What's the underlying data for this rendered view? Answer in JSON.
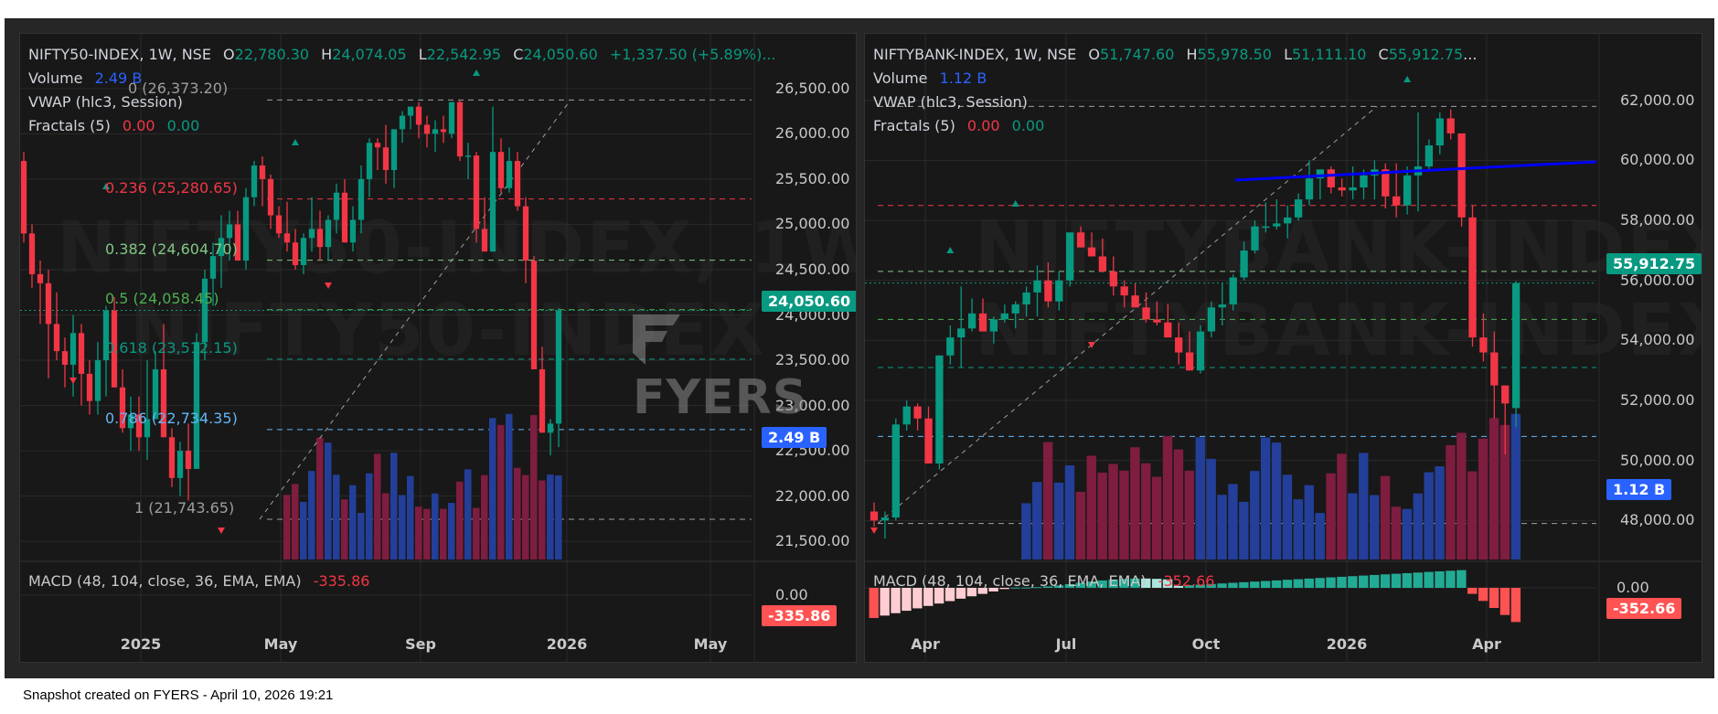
{
  "footer": {
    "text": "Snapshot created on FYERS - April 10, 2026 19:21"
  },
  "watermark_logo": "FYERS",
  "colors": {
    "up": "#089981",
    "down": "#f23645",
    "vol_up": "#233f99",
    "vol_down": "#7e1d3f",
    "macd_pos_strong": "#22ab94",
    "macd_pos_weak": "#ace5dc",
    "macd_neg_strong": "#ff5252",
    "macd_neg_weak": "#ffcdd2",
    "fib_0": "#9e9e9e",
    "fib_0236": "#f23645",
    "fib_0382": "#81c784",
    "fib_05": "#4caf50",
    "fib_0618": "#089981",
    "fib_0786": "#64b5f6",
    "fib_1": "#9e9e9e",
    "trendline": "#0000ff"
  },
  "left": {
    "symbol": "NIFTY50-INDEX, 1W, NSE",
    "ohlc": {
      "o_label": "O",
      "o": "22,780.30",
      "h_label": "H",
      "h": "24,074.05",
      "l_label": "L",
      "l": "22,542.95",
      "c_label": "C",
      "c": "24,050.60",
      "change": "+1,337.50 (+5.89%)...",
      "ellipsis": ""
    },
    "volume_label": "Volume",
    "volume_value": "2.49 B",
    "vwap_label": "VWAP (hlc3, Session)",
    "fractals_label": "Fractals (5)",
    "fractals_v1": "0.00",
    "fractals_v2": "0.00",
    "price_axis": [
      "26,500.00",
      "26,000.00",
      "25,500.00",
      "25,000.00",
      "24,500.00",
      "24,000.00",
      "23,500.00",
      "23,000.00",
      "22,500.00",
      "22,000.00",
      "21,500.00"
    ],
    "last_price_tag": "24,050.60",
    "volume_tag": "2.49 B",
    "macd_label": "MACD (48, 104, close, 36, EMA, EMA)",
    "macd_value": "-335.86",
    "macd_zero": "0.00",
    "macd_tag": "-335.86",
    "time_axis": [
      "2025",
      "May",
      "Sep",
      "2026",
      "May"
    ],
    "fib_levels": [
      {
        "label": "0 (26,373.20)",
        "value": 26373.2
      },
      {
        "label": "0.236 (25,280.65)",
        "value": 25280.65
      },
      {
        "label": "0.382 (24,604.70)",
        "value": 24604.7
      },
      {
        "label": "0.5 (24,058.45)",
        "value": 24058.45
      },
      {
        "label": "0.618 (23,512.15)",
        "value": 23512.15
      },
      {
        "label": "0.786 (22,734.35)",
        "value": 22734.35
      },
      {
        "label": "1 (21,743.65)",
        "value": 21743.65
      }
    ],
    "watermark_line1": "NIFTY50-INDEX, 1W",
    "watermark_line2": "NIFTY50-INDEX"
  },
  "right": {
    "symbol": "NIFTYBANK-INDEX, 1W, NSE",
    "ohlc": {
      "o_label": "O",
      "o": "51,747.60",
      "h_label": "H",
      "h": "55,978.50",
      "l_label": "L",
      "l": "51,111.10",
      "c_label": "C",
      "c": "55,912.75",
      "change": "",
      "ellipsis": "..."
    },
    "volume_label": "Volume",
    "volume_value": "1.12 B",
    "vwap_label": "VWAP (hlc3, Session)",
    "fractals_label": "Fractals (5)",
    "fractals_v1": "0.00",
    "fractals_v2": "0.00",
    "price_axis": [
      "62,000.00",
      "60,000.00",
      "58,000.00",
      "56,000.00",
      "54,000.00",
      "52,000.00",
      "50,000.00",
      "48,000.00"
    ],
    "last_price_tag": "55,912.75",
    "volume_tag": "1.12 B",
    "macd_label": "MACD (48, 104, close, 36, EMA, EMA)",
    "macd_value": "-352.66",
    "macd_zero": "0.00",
    "macd_tag": "-352.66",
    "time_axis": [
      "Apr",
      "Jul",
      "Oct",
      "2026",
      "Apr"
    ],
    "watermark_line1": "NIFTYBANK-INDEX, 1W",
    "watermark_line2": "NIFTYBANK-INDEX"
  },
  "chart_data": [
    {
      "type": "candlestick",
      "title": "NIFTY50-INDEX, 1W, NSE",
      "ylim": [
        21300,
        26700
      ],
      "x_ticks": [
        "2025",
        "May",
        "Sep",
        "2026",
        "May"
      ],
      "last": {
        "open": 22780.3,
        "high": 24074.05,
        "low": 22542.95,
        "close": 24050.6,
        "change": 1337.5,
        "change_pct": 5.89
      },
      "candles": [
        [
          25700,
          25800,
          24800,
          24900
        ],
        [
          24900,
          25000,
          24300,
          24450
        ],
        [
          24450,
          24600,
          23900,
          24350
        ],
        [
          24350,
          24500,
          23300,
          23900
        ],
        [
          23900,
          24250,
          23500,
          23600
        ],
        [
          23600,
          23750,
          23200,
          23450
        ],
        [
          23450,
          24000,
          23100,
          23800
        ],
        [
          23800,
          23900,
          23000,
          23350
        ],
        [
          23350,
          23500,
          22900,
          23050
        ],
        [
          23050,
          23700,
          22900,
          23500
        ],
        [
          23500,
          24100,
          23100,
          24050
        ],
        [
          24050,
          24200,
          23400,
          23200
        ],
        [
          23200,
          23400,
          22700,
          22750
        ],
        [
          22750,
          23100,
          22500,
          22900
        ],
        [
          22900,
          23100,
          22500,
          22650
        ],
        [
          22650,
          23500,
          22400,
          22850
        ],
        [
          22850,
          23600,
          22850,
          23400
        ],
        [
          23400,
          23900,
          23100,
          22650
        ],
        [
          22650,
          22750,
          22100,
          22200
        ],
        [
          22200,
          22600,
          22000,
          22500
        ],
        [
          22500,
          22800,
          21950,
          22300
        ],
        [
          22300,
          23800,
          22300,
          23700
        ],
        [
          23700,
          24500,
          23500,
          24400
        ],
        [
          24400,
          24800,
          24100,
          24650
        ],
        [
          24650,
          25100,
          24300,
          24850
        ],
        [
          24850,
          25150,
          24600,
          25000
        ],
        [
          25000,
          25150,
          24750,
          24600
        ],
        [
          24600,
          25400,
          24500,
          25300
        ],
        [
          25300,
          25700,
          25200,
          25650
        ],
        [
          25650,
          25750,
          25200,
          25500
        ],
        [
          25500,
          25550,
          24950,
          25100
        ],
        [
          25100,
          25200,
          24850,
          24900
        ],
        [
          24900,
          25250,
          24700,
          24800
        ],
        [
          24800,
          24950,
          24500,
          24550
        ],
        [
          24550,
          24900,
          24450,
          24850
        ],
        [
          24850,
          25300,
          24700,
          24950
        ],
        [
          24950,
          25150,
          24600,
          24750
        ],
        [
          24750,
          25100,
          24600,
          25050
        ],
        [
          25050,
          25450,
          24900,
          25350
        ],
        [
          25350,
          25500,
          24800,
          24800
        ],
        [
          24800,
          25200,
          24700,
          25050
        ],
        [
          25050,
          25650,
          24900,
          25500
        ],
        [
          25500,
          25950,
          25300,
          25900
        ],
        [
          25900,
          25950,
          25600,
          25850
        ],
        [
          25850,
          26100,
          25450,
          25600
        ],
        [
          25600,
          26050,
          25400,
          26050
        ],
        [
          26050,
          26250,
          25900,
          26200
        ],
        [
          26200,
          26300,
          26050,
          26300
        ],
        [
          26300,
          26350,
          25950,
          26100
        ],
        [
          26100,
          26200,
          25850,
          26000
        ],
        [
          26000,
          26150,
          25800,
          26050
        ],
        [
          26050,
          26200,
          25900,
          26020
        ],
        [
          26000,
          26300,
          25950,
          26350
        ],
        [
          26350,
          26373,
          25700,
          25750
        ],
        [
          25750,
          25900,
          25500,
          25760
        ],
        [
          25760,
          25800,
          24800,
          24950
        ],
        [
          24950,
          25300,
          24700,
          24700
        ],
        [
          24700,
          26300,
          24700,
          25800
        ],
        [
          25800,
          25950,
          25350,
          25400
        ],
        [
          25400,
          25850,
          25350,
          25700
        ],
        [
          25700,
          25800,
          25150,
          25200
        ],
        [
          25200,
          25300,
          24350,
          24600
        ],
        [
          24600,
          24650,
          23700,
          23400
        ],
        [
          23400,
          23650,
          22800,
          22700
        ],
        [
          22700,
          22850,
          22450,
          22800
        ],
        [
          22800,
          24074,
          22540,
          24050
        ]
      ]
    },
    {
      "type": "candlestick",
      "title": "NIFTYBANK-INDEX, 1W, NSE",
      "ylim": [
        46700,
        63000
      ],
      "x_ticks": [
        "Apr",
        "Jul",
        "Oct",
        "2026",
        "Apr"
      ],
      "last": {
        "open": 51747.6,
        "high": 55978.5,
        "low": 51111.1,
        "close": 55912.75
      },
      "candles": [
        [
          48300,
          48600,
          47800,
          48000
        ],
        [
          48000,
          48300,
          47400,
          48100
        ],
        [
          48100,
          51400,
          48000,
          51200
        ],
        [
          51200,
          52000,
          51000,
          51800
        ],
        [
          51800,
          51900,
          51000,
          51400
        ],
        [
          51400,
          51800,
          50800,
          49900
        ],
        [
          49900,
          53400,
          49700,
          53500
        ],
        [
          53500,
          54500,
          53200,
          54100
        ],
        [
          54100,
          55800,
          53100,
          54400
        ],
        [
          54400,
          55400,
          54300,
          54900
        ],
        [
          54900,
          55400,
          54400,
          54300
        ],
        [
          54300,
          54800,
          53900,
          54700
        ],
        [
          54700,
          55200,
          54600,
          54900
        ],
        [
          54900,
          55300,
          54400,
          55200
        ],
        [
          55200,
          55800,
          54800,
          55600
        ],
        [
          55600,
          56500,
          54800,
          56000
        ],
        [
          56000,
          56600,
          55100,
          55300
        ],
        [
          55300,
          56300,
          55000,
          56000
        ],
        [
          56000,
          57300,
          55800,
          57600
        ],
        [
          57600,
          57800,
          57300,
          57100
        ],
        [
          57100,
          57600,
          56900,
          56800
        ],
        [
          56800,
          57400,
          56900,
          56300
        ],
        [
          56300,
          56800,
          55500,
          55800
        ],
        [
          55800,
          56000,
          55100,
          55500
        ],
        [
          55500,
          55900,
          55200,
          55100
        ],
        [
          55100,
          55600,
          54600,
          54700
        ],
        [
          54700,
          55300,
          54500,
          54600
        ],
        [
          54600,
          55200,
          54300,
          54100
        ],
        [
          54100,
          54600,
          53200,
          53600
        ],
        [
          53600,
          54300,
          53300,
          53000
        ],
        [
          53000,
          54500,
          52900,
          54300
        ],
        [
          54300,
          55300,
          54100,
          55100
        ],
        [
          55100,
          55900,
          54500,
          55200
        ],
        [
          55200,
          56200,
          55000,
          56100
        ],
        [
          56100,
          57300,
          56000,
          57000
        ],
        [
          57000,
          58000,
          56900,
          57800
        ],
        [
          57800,
          58600,
          57600,
          57800
        ],
        [
          57800,
          58700,
          57700,
          57900
        ],
        [
          57900,
          58500,
          57400,
          58100
        ],
        [
          58100,
          58900,
          58000,
          58700
        ],
        [
          58700,
          60000,
          58500,
          59400
        ],
        [
          59400,
          59600,
          58700,
          59700
        ],
        [
          59700,
          59800,
          58900,
          59100
        ],
        [
          59100,
          59400,
          58800,
          59000
        ],
        [
          59000,
          59800,
          58700,
          59100
        ],
        [
          59100,
          59700,
          58700,
          59500
        ],
        [
          59500,
          60000,
          58700,
          59700
        ],
        [
          59700,
          59900,
          58400,
          58800
        ],
        [
          58800,
          59900,
          58100,
          58500
        ],
        [
          58500,
          59800,
          58200,
          59500
        ],
        [
          59500,
          61600,
          58300,
          59800
        ],
        [
          59800,
          60700,
          59700,
          60500
        ],
        [
          60500,
          61600,
          60200,
          61400
        ],
        [
          61400,
          61700,
          60700,
          60900
        ],
        [
          60900,
          60300,
          57800,
          58100
        ],
        [
          58100,
          58500,
          53800,
          54100
        ],
        [
          54100,
          54900,
          53300,
          53600
        ],
        [
          53600,
          54300,
          51400,
          52500
        ],
        [
          52500,
          52000,
          50200,
          51900
        ],
        [
          51747,
          55978,
          51111,
          55912
        ]
      ]
    }
  ]
}
